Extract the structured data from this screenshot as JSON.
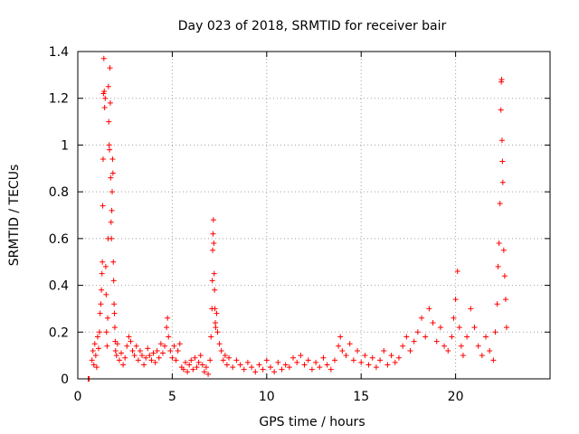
{
  "chart_data": {
    "type": "scatter",
    "title": "Day 023 of 2018, SRMTID for receiver bair",
    "xlabel": "GPS time / hours",
    "ylabel": "SRMTID / TECUs",
    "xlim": [
      0,
      25
    ],
    "ylim": [
      0,
      1.4
    ],
    "x_ticks": [
      0,
      5,
      10,
      15,
      20
    ],
    "y_ticks": [
      0,
      0.2,
      0.4,
      0.6,
      0.8,
      1,
      1.2,
      1.4
    ],
    "x_tick_labels": [
      "0",
      "5",
      "10",
      "15",
      "20"
    ],
    "y_tick_labels": [
      "0",
      "0.2",
      "0.4",
      "0.6",
      "0.8",
      "1",
      "1.2",
      "1.4"
    ],
    "grid": true,
    "marker": "plus",
    "color": "#ff0000",
    "series": [
      {
        "name": "SRMTID",
        "points": [
          [
            0.55,
            0.0
          ],
          [
            0.6,
            0.0
          ],
          [
            0.75,
            0.08
          ],
          [
            0.8,
            0.12
          ],
          [
            0.85,
            0.06
          ],
          [
            0.9,
            0.15
          ],
          [
            0.95,
            0.1
          ],
          [
            1.0,
            0.05
          ],
          [
            1.05,
            0.18
          ],
          [
            1.1,
            0.13
          ],
          [
            1.15,
            0.2
          ],
          [
            1.18,
            0.28
          ],
          [
            1.22,
            0.32
          ],
          [
            1.25,
            0.38
          ],
          [
            1.28,
            0.45
          ],
          [
            1.3,
            0.5
          ],
          [
            1.32,
            0.74
          ],
          [
            1.34,
            0.94
          ],
          [
            1.36,
            1.22
          ],
          [
            1.38,
            1.37
          ],
          [
            1.4,
            1.23
          ],
          [
            1.42,
            1.16
          ],
          [
            1.45,
            1.2
          ],
          [
            1.48,
            0.48
          ],
          [
            1.5,
            0.36
          ],
          [
            1.52,
            0.2
          ],
          [
            1.55,
            0.14
          ],
          [
            1.58,
            0.26
          ],
          [
            1.6,
            0.6
          ],
          [
            1.62,
            1.25
          ],
          [
            1.64,
            1.1
          ],
          [
            1.66,
            1.0
          ],
          [
            1.68,
            0.98
          ],
          [
            1.7,
            1.33
          ],
          [
            1.72,
            1.18
          ],
          [
            1.74,
            0.86
          ],
          [
            1.76,
            0.67
          ],
          [
            1.78,
            0.6
          ],
          [
            1.8,
            0.72
          ],
          [
            1.82,
            0.8
          ],
          [
            1.84,
            0.94
          ],
          [
            1.86,
            0.88
          ],
          [
            1.88,
            0.5
          ],
          [
            1.9,
            0.42
          ],
          [
            1.92,
            0.32
          ],
          [
            1.94,
            0.28
          ],
          [
            1.96,
            0.22
          ],
          [
            1.98,
            0.16
          ],
          [
            2.0,
            0.12
          ],
          [
            2.05,
            0.1
          ],
          [
            2.1,
            0.15
          ],
          [
            2.2,
            0.08
          ],
          [
            2.3,
            0.11
          ],
          [
            2.4,
            0.06
          ],
          [
            2.5,
            0.09
          ],
          [
            2.6,
            0.14
          ],
          [
            2.7,
            0.18
          ],
          [
            2.8,
            0.16
          ],
          [
            2.9,
            0.12
          ],
          [
            3.0,
            0.1
          ],
          [
            3.1,
            0.14
          ],
          [
            3.2,
            0.08
          ],
          [
            3.3,
            0.12
          ],
          [
            3.4,
            0.1
          ],
          [
            3.5,
            0.06
          ],
          [
            3.6,
            0.09
          ],
          [
            3.7,
            0.13
          ],
          [
            3.8,
            0.1
          ],
          [
            3.9,
            0.08
          ],
          [
            4.0,
            0.11
          ],
          [
            4.1,
            0.07
          ],
          [
            4.2,
            0.12
          ],
          [
            4.3,
            0.09
          ],
          [
            4.4,
            0.15
          ],
          [
            4.5,
            0.11
          ],
          [
            4.6,
            0.14
          ],
          [
            4.7,
            0.22
          ],
          [
            4.75,
            0.26
          ],
          [
            4.8,
            0.18
          ],
          [
            4.9,
            0.12
          ],
          [
            5.0,
            0.09
          ],
          [
            5.1,
            0.14
          ],
          [
            5.2,
            0.08
          ],
          [
            5.3,
            0.12
          ],
          [
            5.4,
            0.15
          ],
          [
            5.5,
            0.05
          ],
          [
            5.6,
            0.04
          ],
          [
            5.7,
            0.07
          ],
          [
            5.8,
            0.03
          ],
          [
            5.9,
            0.06
          ],
          [
            6.0,
            0.08
          ],
          [
            6.1,
            0.04
          ],
          [
            6.2,
            0.09
          ],
          [
            6.3,
            0.05
          ],
          [
            6.4,
            0.07
          ],
          [
            6.5,
            0.1
          ],
          [
            6.6,
            0.06
          ],
          [
            6.7,
            0.03
          ],
          [
            6.8,
            0.05
          ],
          [
            6.9,
            0.02
          ],
          [
            7.0,
            0.08
          ],
          [
            7.05,
            0.18
          ],
          [
            7.1,
            0.3
          ],
          [
            7.12,
            0.42
          ],
          [
            7.14,
            0.55
          ],
          [
            7.16,
            0.62
          ],
          [
            7.18,
            0.68
          ],
          [
            7.2,
            0.58
          ],
          [
            7.22,
            0.45
          ],
          [
            7.24,
            0.38
          ],
          [
            7.26,
            0.3
          ],
          [
            7.28,
            0.24
          ],
          [
            7.3,
            0.22
          ],
          [
            7.35,
            0.28
          ],
          [
            7.4,
            0.2
          ],
          [
            7.5,
            0.15
          ],
          [
            7.6,
            0.12
          ],
          [
            7.7,
            0.08
          ],
          [
            7.8,
            0.1
          ],
          [
            7.9,
            0.06
          ],
          [
            8.0,
            0.09
          ],
          [
            8.2,
            0.05
          ],
          [
            8.4,
            0.08
          ],
          [
            8.6,
            0.06
          ],
          [
            8.8,
            0.04
          ],
          [
            9.0,
            0.07
          ],
          [
            9.2,
            0.05
          ],
          [
            9.4,
            0.03
          ],
          [
            9.6,
            0.06
          ],
          [
            9.8,
            0.04
          ],
          [
            10.0,
            0.08
          ],
          [
            10.2,
            0.05
          ],
          [
            10.4,
            0.03
          ],
          [
            10.6,
            0.07
          ],
          [
            10.8,
            0.04
          ],
          [
            11.0,
            0.06
          ],
          [
            11.2,
            0.05
          ],
          [
            11.4,
            0.09
          ],
          [
            11.6,
            0.07
          ],
          [
            11.8,
            0.1
          ],
          [
            12.0,
            0.06
          ],
          [
            12.2,
            0.08
          ],
          [
            12.4,
            0.04
          ],
          [
            12.6,
            0.07
          ],
          [
            12.8,
            0.05
          ],
          [
            13.0,
            0.09
          ],
          [
            13.2,
            0.06
          ],
          [
            13.4,
            0.04
          ],
          [
            13.6,
            0.08
          ],
          [
            13.8,
            0.14
          ],
          [
            13.9,
            0.18
          ],
          [
            14.0,
            0.12
          ],
          [
            14.2,
            0.1
          ],
          [
            14.4,
            0.15
          ],
          [
            14.6,
            0.08
          ],
          [
            14.8,
            0.12
          ],
          [
            15.0,
            0.07
          ],
          [
            15.2,
            0.1
          ],
          [
            15.4,
            0.06
          ],
          [
            15.6,
            0.09
          ],
          [
            15.8,
            0.05
          ],
          [
            16.0,
            0.08
          ],
          [
            16.2,
            0.12
          ],
          [
            16.4,
            0.06
          ],
          [
            16.6,
            0.1
          ],
          [
            16.8,
            0.07
          ],
          [
            17.0,
            0.09
          ],
          [
            17.2,
            0.14
          ],
          [
            17.4,
            0.18
          ],
          [
            17.6,
            0.12
          ],
          [
            17.8,
            0.16
          ],
          [
            18.0,
            0.2
          ],
          [
            18.2,
            0.26
          ],
          [
            18.4,
            0.18
          ],
          [
            18.6,
            0.3
          ],
          [
            18.8,
            0.24
          ],
          [
            19.0,
            0.16
          ],
          [
            19.2,
            0.22
          ],
          [
            19.4,
            0.14
          ],
          [
            19.6,
            0.12
          ],
          [
            19.8,
            0.18
          ],
          [
            19.9,
            0.26
          ],
          [
            20.0,
            0.34
          ],
          [
            20.1,
            0.46
          ],
          [
            20.2,
            0.22
          ],
          [
            20.3,
            0.14
          ],
          [
            20.4,
            0.1
          ],
          [
            20.6,
            0.18
          ],
          [
            20.8,
            0.3
          ],
          [
            21.0,
            0.22
          ],
          [
            21.2,
            0.14
          ],
          [
            21.4,
            0.1
          ],
          [
            21.6,
            0.18
          ],
          [
            21.8,
            0.12
          ],
          [
            22.0,
            0.08
          ],
          [
            22.1,
            0.2
          ],
          [
            22.2,
            0.32
          ],
          [
            22.25,
            0.48
          ],
          [
            22.3,
            0.58
          ],
          [
            22.35,
            0.75
          ],
          [
            22.4,
            1.15
          ],
          [
            22.42,
            1.27
          ],
          [
            22.44,
            1.28
          ],
          [
            22.46,
            1.02
          ],
          [
            22.48,
            0.93
          ],
          [
            22.5,
            0.84
          ],
          [
            22.55,
            0.55
          ],
          [
            22.6,
            0.44
          ],
          [
            22.65,
            0.34
          ],
          [
            22.7,
            0.22
          ]
        ]
      }
    ]
  }
}
